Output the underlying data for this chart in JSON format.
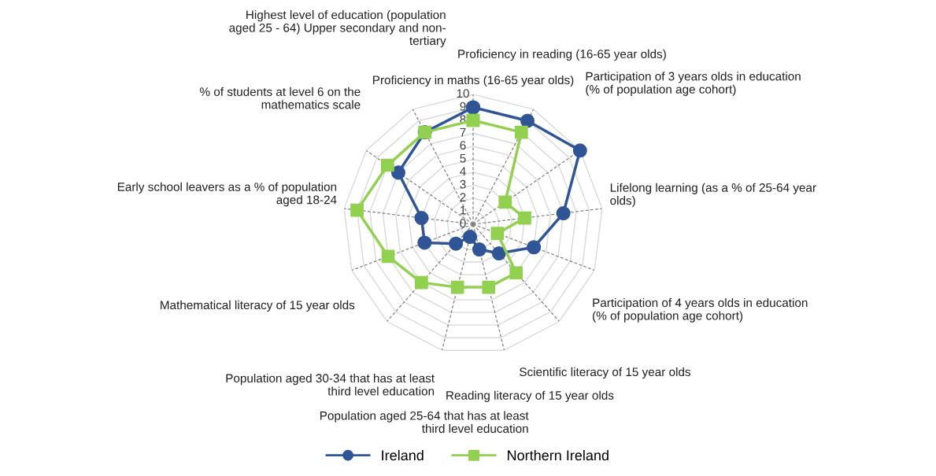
{
  "chart_data": {
    "type": "radar",
    "categories": [
      "Proficiency in maths (16-65 year olds)",
      "Proficiency in reading (16-65 year olds)",
      "Participation of 3 years olds in education\n(% of population age cohort)",
      "Lifelong learning (as a % of 25-64 year\nolds)",
      "Participation of 4 years olds in education\n(% of population age cohort)",
      "Scientific literacy of 15 year olds",
      "Reading literacy of 15 year olds",
      "Population aged 25-64 that has at least\nthird level education",
      "Population aged 30-34 that has at least\nthird level education",
      "Mathematical literacy of 15 year olds",
      "Early school leavers as a % of population\naged 18-24",
      "% of students at level 6 on the\nmathematics scale",
      "Highest level of education (population\naged 25 - 64) Upper secondary and non-\ntertiary"
    ],
    "series": [
      {
        "name": "Ireland",
        "color": "#2f5597",
        "marker": "circle",
        "values": [
          9,
          9,
          10,
          7,
          5,
          3,
          2,
          1,
          2,
          4,
          4,
          7,
          8
        ]
      },
      {
        "name": "Northern Ireland",
        "color": "#92d050",
        "marker": "square",
        "values": [
          8,
          8,
          3,
          4,
          2,
          5,
          5,
          5,
          6,
          7,
          9,
          8,
          8
        ]
      }
    ],
    "ylim": [
      0,
      10
    ],
    "yticks": [
      0,
      1,
      2,
      3,
      4,
      5,
      6,
      7,
      8,
      9,
      10
    ],
    "grid": true,
    "legend": "bottom"
  }
}
